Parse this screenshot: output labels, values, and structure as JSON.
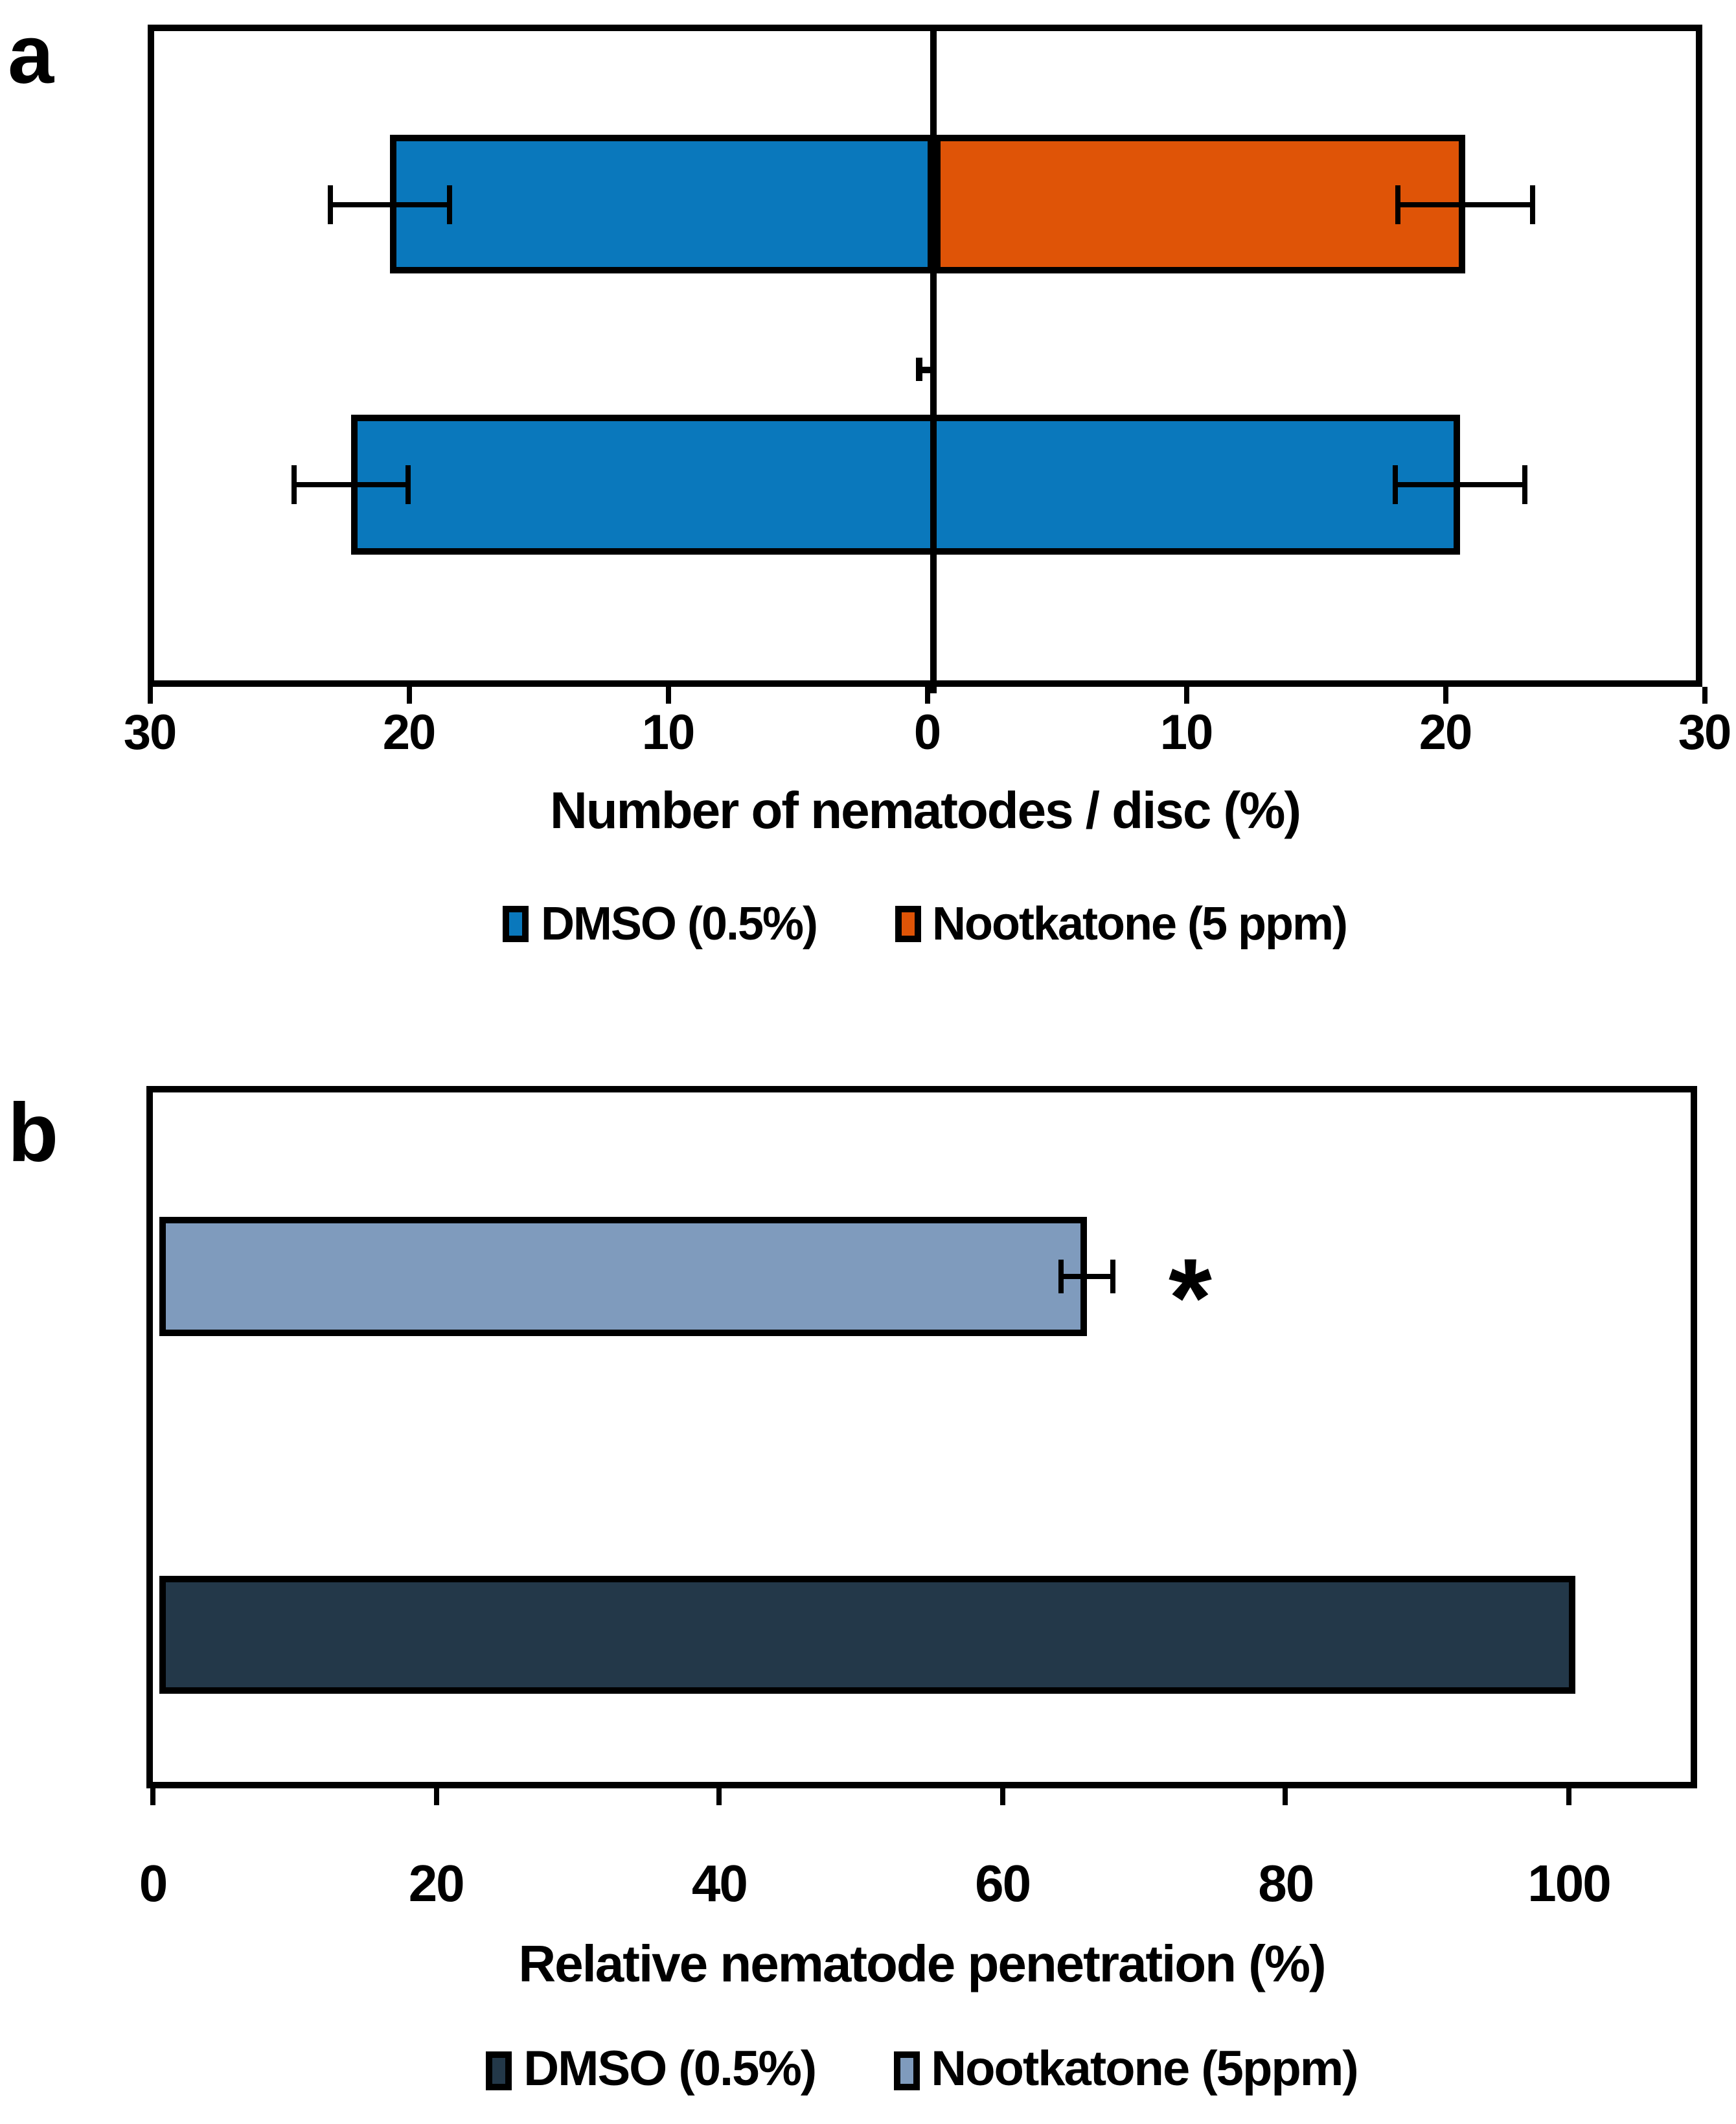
{
  "chart_data": [
    {
      "panel_label": "a",
      "type": "bar",
      "orientation": "horizontal-diverging",
      "xlabel": "Number of nematodes / disc (%)",
      "x_axis": {
        "min": -30,
        "max": 30,
        "tick_step": 10,
        "tick_labels": [
          "30",
          "20",
          "10",
          "0",
          "10",
          "20",
          "30"
        ],
        "grid": false
      },
      "legend_position": "bottom",
      "legend": [
        {
          "name": "DMSO (0.5%)",
          "color": "#0a78bc"
        },
        {
          "name": "Nootkatone (5 ppm)",
          "color": "#df5407"
        }
      ],
      "bars": [
        {
          "row": 0,
          "series": "DMSO (0.5%)",
          "value": -21.0,
          "error": 2.3,
          "color": "#0a78bc"
        },
        {
          "row": 0,
          "series": "Nootkatone (5 ppm)",
          "value": 20.5,
          "error": 2.6,
          "color": "#df5407"
        },
        {
          "row": 1,
          "marker": "near-zero-whisker",
          "value": -0.6,
          "error": 0,
          "color": "#000000"
        },
        {
          "row": 2,
          "series": "DMSO (0.5%)",
          "value": -22.5,
          "error": 2.2,
          "color": "#0a78bc"
        },
        {
          "row": 2,
          "series": "DMSO (0.5%)",
          "value": 20.3,
          "error": 2.5,
          "color": "#0a78bc"
        }
      ]
    },
    {
      "panel_label": "b",
      "type": "bar",
      "orientation": "horizontal",
      "xlabel": "Relative nematode penetration (%)",
      "x_axis": {
        "min": 0,
        "max": 110,
        "tick_step": 20,
        "tick_labels": [
          "0",
          "20",
          "40",
          "60",
          "80",
          "100"
        ],
        "grid": false
      },
      "legend_position": "bottom",
      "legend": [
        {
          "name": "DMSO (0.5%)",
          "color": "#233849"
        },
        {
          "name": "Nootkatone (5ppm)",
          "color": "#7f9bbd"
        }
      ],
      "bars": [
        {
          "row": 0,
          "series": "Nootkatone (5ppm)",
          "value": 65.5,
          "error": 1.8,
          "color": "#7f9bbd",
          "annotation": "*"
        },
        {
          "row": 1,
          "series": "DMSO (0.5%)",
          "value": 100,
          "error": 0,
          "color": "#233849"
        }
      ]
    }
  ]
}
